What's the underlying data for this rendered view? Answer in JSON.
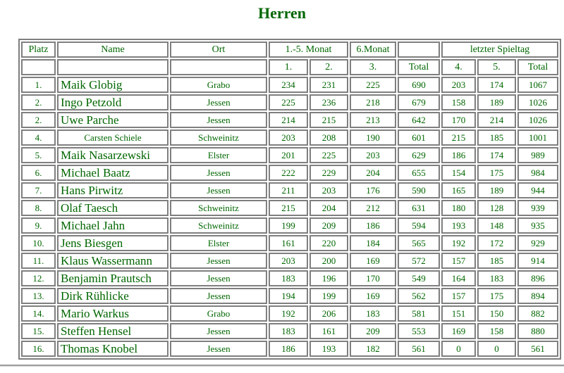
{
  "title": "Herren",
  "colors": {
    "text_green": "#006600",
    "border_gray": "#7f7f7f",
    "divider_gray": "#9e9e9e"
  },
  "table": {
    "header": {
      "platz": "Platz",
      "name": "Name",
      "ort": "Ort",
      "monat_1_5": "1.-5. Monat",
      "monat_6": "6.Monat",
      "letzter_spieltag": "letzter Spieltag"
    },
    "subheader": [
      "1.",
      "2.",
      "3.",
      "Total",
      "4.",
      "5.",
      "Total"
    ],
    "rows": [
      {
        "platz": "1.",
        "name": "Maik Globig",
        "ort": "Grabo",
        "values": [
          "234",
          "231",
          "225",
          "690",
          "203",
          "174",
          "1067"
        ],
        "name_small": false
      },
      {
        "platz": "2.",
        "name": "Ingo Petzold",
        "ort": "Jessen",
        "values": [
          "225",
          "236",
          "218",
          "679",
          "158",
          "189",
          "1026"
        ],
        "name_small": false
      },
      {
        "platz": "2.",
        "name": "Uwe Parche",
        "ort": "Jessen",
        "values": [
          "214",
          "215",
          "213",
          "642",
          "170",
          "214",
          "1026"
        ],
        "name_small": false
      },
      {
        "platz": "4.",
        "name": "Carsten Schiele",
        "ort": "Schweinitz",
        "values": [
          "203",
          "208",
          "190",
          "601",
          "215",
          "185",
          "1001"
        ],
        "name_small": true
      },
      {
        "platz": "5.",
        "name": "Maik Nasarzewski",
        "ort": "Elster",
        "values": [
          "201",
          "225",
          "203",
          "629",
          "186",
          "174",
          "989"
        ],
        "name_small": false
      },
      {
        "platz": "6.",
        "name": "Michael Baatz",
        "ort": "Jessen",
        "values": [
          "222",
          "229",
          "204",
          "655",
          "154",
          "175",
          "984"
        ],
        "name_small": false
      },
      {
        "platz": "7.",
        "name": "Hans Pirwitz",
        "ort": "Jessen",
        "values": [
          "211",
          "203",
          "176",
          "590",
          "165",
          "189",
          "944"
        ],
        "name_small": false
      },
      {
        "platz": "8.",
        "name": "Olaf Taesch",
        "ort": "Schweinitz",
        "values": [
          "215",
          "204",
          "212",
          "631",
          "180",
          "128",
          "939"
        ],
        "name_small": false
      },
      {
        "platz": "9.",
        "name": "Michael Jahn",
        "ort": "Schweinitz",
        "values": [
          "199",
          "209",
          "186",
          "594",
          "193",
          "148",
          "935"
        ],
        "name_small": false
      },
      {
        "platz": "10.",
        "name": "Jens Biesgen",
        "ort": "Elster",
        "values": [
          "161",
          "220",
          "184",
          "565",
          "192",
          "172",
          "929"
        ],
        "name_small": false
      },
      {
        "platz": "11.",
        "name": "Klaus Wassermann",
        "ort": "Jessen",
        "values": [
          "203",
          "200",
          "169",
          "572",
          "157",
          "185",
          "914"
        ],
        "name_small": false
      },
      {
        "platz": "12.",
        "name": "Benjamin Prautsch",
        "ort": "Jessen",
        "values": [
          "183",
          "196",
          "170",
          "549",
          "164",
          "183",
          "896"
        ],
        "name_small": false
      },
      {
        "platz": "13.",
        "name": "Dirk Rühlicke",
        "ort": "Jessen",
        "values": [
          "194",
          "199",
          "169",
          "562",
          "157",
          "175",
          "894"
        ],
        "name_small": false
      },
      {
        "platz": "14.",
        "name": "Mario Warkus",
        "ort": "Grabo",
        "values": [
          "192",
          "206",
          "183",
          "581",
          "151",
          "150",
          "882"
        ],
        "name_small": false
      },
      {
        "platz": "15.",
        "name": "Steffen Hensel",
        "ort": "Jessen",
        "values": [
          "183",
          "161",
          "209",
          "553",
          "169",
          "158",
          "880"
        ],
        "name_small": false
      },
      {
        "platz": "16.",
        "name": "Thomas Knobel",
        "ort": "Jessen",
        "values": [
          "186",
          "193",
          "182",
          "561",
          "0",
          "0",
          "561"
        ],
        "name_small": false
      }
    ]
  }
}
